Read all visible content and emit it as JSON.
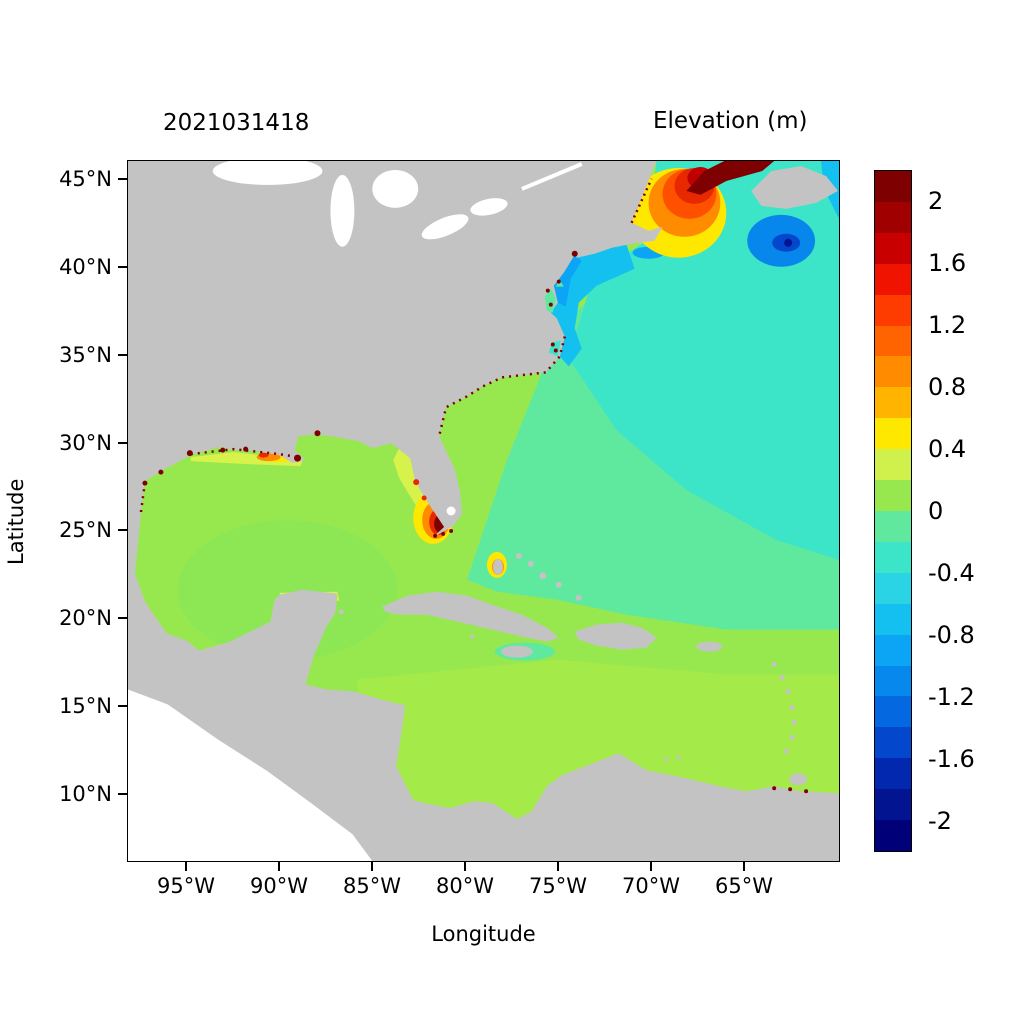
{
  "chart_data": {
    "type": "heatmap",
    "timestamp_label": "2021031418",
    "title": "Elevation (m)",
    "xlabel": "Longitude",
    "ylabel": "Latitude",
    "x_ticks": [
      "95°W",
      "90°W",
      "85°W",
      "80°W",
      "75°W",
      "70°W",
      "65°W"
    ],
    "y_ticks": [
      "45°N",
      "40°N",
      "35°N",
      "30°N",
      "25°N",
      "20°N",
      "15°N",
      "10°N"
    ],
    "lon_range_deg": [
      -98.2,
      -59.8
    ],
    "lat_range_deg": [
      6.1,
      46.1
    ],
    "grid": false,
    "legend_position": "right-colorbar",
    "colorbar": {
      "tick_labels": [
        "2",
        "1.6",
        "1.2",
        "0.8",
        "0.4",
        "0",
        "-0.4",
        "-0.8",
        "-1.2",
        "-1.6",
        "-2"
      ],
      "band_step_m": 0.2,
      "value_range_m": [
        -2.2,
        2.2
      ],
      "band_colors_top_to_bottom": [
        "#7F0000",
        "#A00000",
        "#C80000",
        "#F01400",
        "#FF3C00",
        "#FF6400",
        "#FF8C00",
        "#FFB400",
        "#FFE800",
        "#D0F04C",
        "#97E84F",
        "#60E89E",
        "#3CE4C8",
        "#2AD4E4",
        "#14C0F0",
        "#0CA4F4",
        "#0688EC",
        "#0468E0",
        "#0348CC",
        "#0228B0",
        "#021490",
        "#000078"
      ]
    },
    "regions": [
      {
        "area": "Gulf of Maine / Bay of Fundy hotspot",
        "approx_lon": -68,
        "approx_lat": 44,
        "elevation_m": "+0.4 to >+2 concentric maxima, dark red core in Bay of Fundy"
      },
      {
        "area": "Mid-Atlantic coastal strip (New Jersey to Long Island)",
        "elevation_m": "-0.6 to -1.0"
      },
      {
        "area": "Blue patch southeast of Nova Scotia",
        "elevation_m": "-1.0 to -1.8"
      },
      {
        "area": "Open northwest Atlantic",
        "elevation_m": "-0.4 to -0.6"
      },
      {
        "area": "Central Atlantic / Sargasso region",
        "elevation_m": "-0.2 to 0"
      },
      {
        "area": "Gulf of Mexico",
        "elevation_m": "0 to +0.2"
      },
      {
        "area": "West Florida shelf",
        "elevation_m": "+0.2 to +0.4"
      },
      {
        "area": "Southwest Florida coast / Everglades",
        "elevation_m": "+0.4 to >+2 local maxima"
      },
      {
        "area": "Louisiana-Texas coast",
        "elevation_m": "+0.4 to >+2 local coastal spots"
      },
      {
        "area": "Caribbean Sea",
        "elevation_m": "0 to +0.4"
      },
      {
        "area": "Northwest Bahamas spot",
        "elevation_m": "+0.4 to +1.0"
      }
    ]
  },
  "palette": {
    "land": "#C3C3C3",
    "out_of_domain": "#FFFFFF",
    "lake": "#FFFFFF",
    "green_0": "#97E84F",
    "green_carib": "#A4EA49",
    "green_gulf": "#8DE755",
    "springgreen": "#5FE99E",
    "turquoise": "#3CE4C8",
    "cyan": "#2AD4E4",
    "lightcyan": "#14C0F0",
    "skyblue": "#0CA4F4",
    "blue": "#0787EC",
    "midblue": "#0348CC",
    "navy": "#021490",
    "yelgreen": "#D7F24B",
    "yellow": "#FFE800",
    "orange": "#FF8C00",
    "orangered": "#FF5000",
    "red": "#E82800",
    "darkred2": "#C00000",
    "darkred": "#7F0000"
  }
}
